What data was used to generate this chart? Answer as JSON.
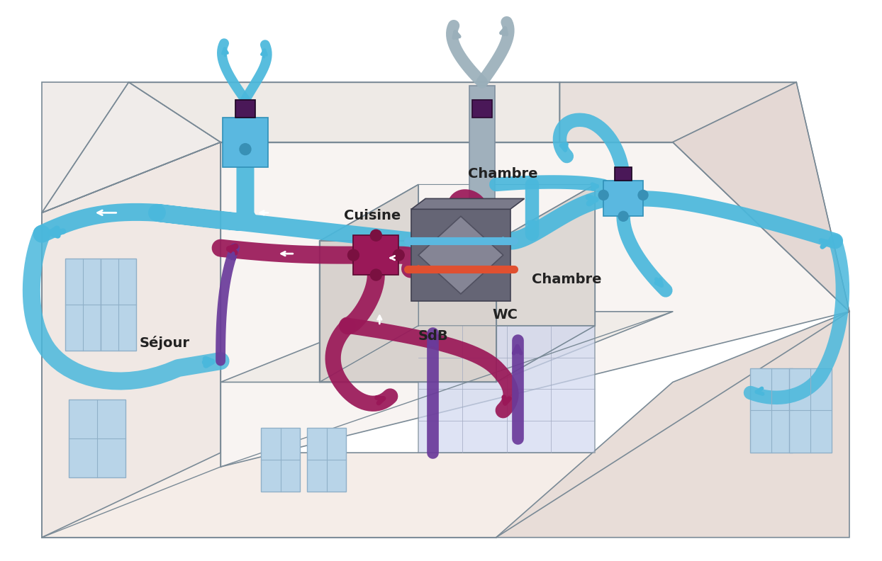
{
  "background_color": "#ffffff",
  "wall_color_left": "#f0e8e4",
  "wall_color_front": "#ede4e0",
  "wall_color_floor": "#f5ede8",
  "wall_color_back": "#f8f4f2",
  "wall_color_right": "#e8ddd8",
  "roof_left_color": "#f0ecea",
  "roof_right_color": "#e8e0dc",
  "roof_gable_color": "#e4d8d4",
  "outline_color": "#7a8a96",
  "window_color": "#b8d4e8",
  "window_frame": "#90b0c8",
  "fresh_color": "#4ab8dc",
  "exhaust_color": "#9a1858",
  "purple_color": "#6a3a9a",
  "gray_duct_color": "#a0b0bc",
  "exchanger_color": "#707080",
  "vmc_blue_color": "#5ab8e0",
  "vmc_purple_color": "#4a1858",
  "floor_tile_color": "#c8d0e8",
  "labels": {
    "sejour": "Séjour",
    "cuisine": "Cuisine",
    "chambre_top": "Chambre",
    "chambre_right": "Chambre",
    "sdb": "SdB",
    "wc": "WC"
  },
  "figsize": [
    12.44,
    7.92
  ],
  "dpi": 100
}
